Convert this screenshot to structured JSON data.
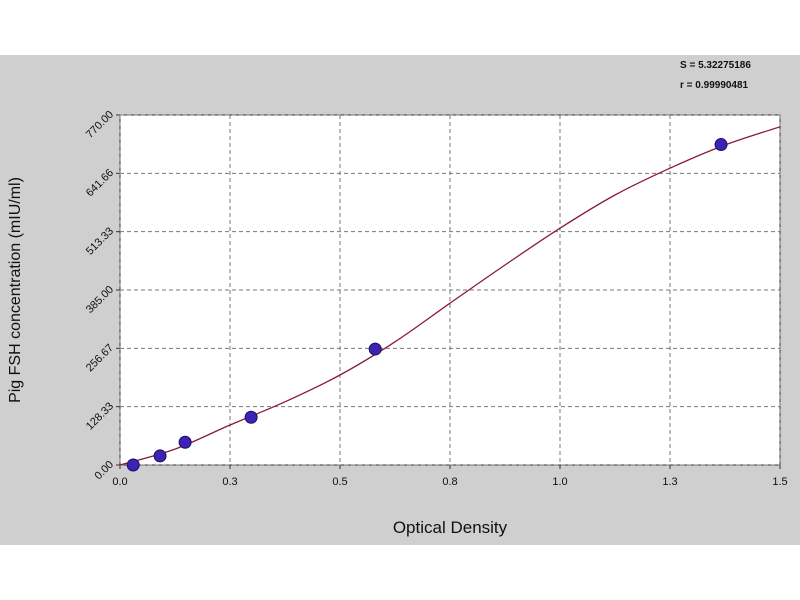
{
  "chart_data": {
    "type": "scatter",
    "annotations": [
      "S = 5.32275186",
      "r = 0.99990481"
    ],
    "xlabel": "Optical Density",
    "ylabel": "Pig FSH concentration (mIU/ml)",
    "xlim": [
      0,
      1.5
    ],
    "ylim": [
      0,
      770
    ],
    "xticks": [
      {
        "value": 0,
        "label": "0.0"
      },
      {
        "value": 0.25,
        "label": "0.3"
      },
      0.5,
      {
        "value": 0.75,
        "label": "0.8"
      },
      {
        "value": 1.0,
        "label": "1.0"
      },
      {
        "value": 1.25,
        "label": "1.3"
      },
      1.5
    ],
    "yticks": [
      {
        "value": 0,
        "label": "0.00"
      },
      128.33,
      256.67,
      {
        "value": 385,
        "label": "385.00"
      },
      513.33,
      641.66,
      {
        "value": 770,
        "label": "770.00"
      }
    ],
    "grid": true,
    "points": {
      "color": "#3b23b4",
      "x": [
        0.03,
        0.091,
        0.148,
        0.298,
        0.58,
        1.366
      ],
      "values": [
        0,
        20,
        50,
        105,
        255,
        705
      ]
    },
    "curve": {
      "color": "#8b1a3a",
      "x": [
        0,
        0.125,
        0.25,
        0.375,
        0.5,
        0.625,
        0.75,
        0.875,
        1.0,
        1.125,
        1.25,
        1.375,
        1.5
      ],
      "values": [
        0,
        35,
        88,
        139,
        198,
        271,
        356,
        440,
        521,
        594,
        653,
        704,
        744
      ]
    }
  }
}
